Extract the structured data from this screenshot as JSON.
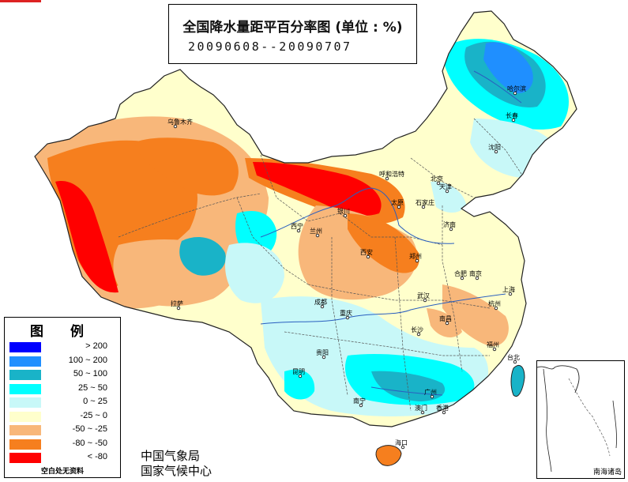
{
  "title": {
    "line1": "全国降水量距平百分率图 (单位 : %)",
    "line2": "20090608--20090707"
  },
  "legend": {
    "heading": "图 例",
    "items": [
      {
        "label": "> 200",
        "color": "#0000ff"
      },
      {
        "label": "100 ~ 200",
        "color": "#1f8fff"
      },
      {
        "label": "50 ~ 100",
        "color": "#19b3c8"
      },
      {
        "label": "25 ~ 50",
        "color": "#00ffff"
      },
      {
        "label": "0 ~ 25",
        "color": "#c8f8f8"
      },
      {
        "label": "-25 ~ 0",
        "color": "#ffffcc"
      },
      {
        "label": "-50 ~ -25",
        "color": "#f8b77a"
      },
      {
        "label": "-80 ~ -50",
        "color": "#f67f1e"
      },
      {
        "label": "< -80",
        "color": "#ff0000"
      }
    ],
    "note": "空白处无资料"
  },
  "agency": {
    "line1": "中国气象局",
    "line2": "国家气候中心"
  },
  "inset": {
    "label": "南海诸岛"
  },
  "cities": [
    "乌鲁木齐",
    "哈尔滨",
    "长春",
    "沈阳",
    "呼和浩特",
    "北京",
    "天津",
    "银川",
    "太原",
    "石家庄",
    "济南",
    "西宁",
    "兰州",
    "西安",
    "郑州",
    "合肥",
    "南京",
    "上海",
    "拉萨",
    "成都",
    "武汉",
    "杭州",
    "重庆",
    "南昌",
    "长沙",
    "福州",
    "贵阳",
    "台北",
    "昆明",
    "广州",
    "南宁",
    "香港",
    "澳门",
    "海口"
  ]
}
